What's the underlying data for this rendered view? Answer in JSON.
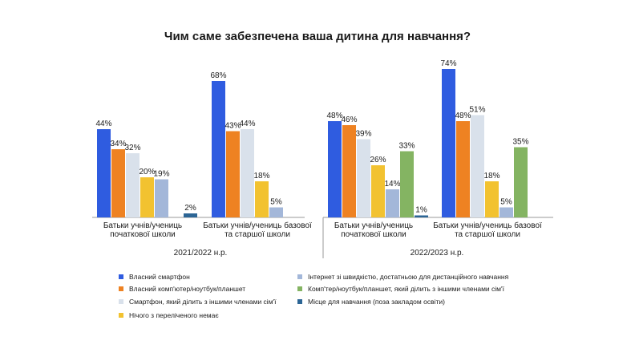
{
  "chart_data": {
    "type": "bar",
    "title": "Чим саме забезпечена ваша дитина для навчання?",
    "series": [
      {
        "name": "Власний смартфон",
        "color": "#2f5ce0"
      },
      {
        "name": "Власний комп'ютер/ноутбук/планшет",
        "color": "#ee8222"
      },
      {
        "name": "Смартфон, який ділить з іншими членами сім'ї",
        "color": "#d9e1eb"
      },
      {
        "name": "Нічого з переліченого немає",
        "color": "#f2c230"
      },
      {
        "name": "Інтернет зі швидкістю, достатньою для дистанційного навчання",
        "color": "#a3b7d9"
      },
      {
        "name": "Комп'тер/ноутбук/планшет, який ділить з іншими членами сім'ї",
        "color": "#84b462"
      },
      {
        "name": "Місце для навчання (поза закладом освіти)",
        "color": "#2c6595"
      }
    ],
    "periods": [
      {
        "label": "2021/2022 н.р.",
        "groups": [
          {
            "label": [
              "Батьки учнів/учениць",
              "початкової школи"
            ],
            "values": [
              44,
              34,
              32,
              20,
              19,
              null,
              2
            ],
            "labels": [
              "44%",
              "34%",
              "32%",
              "20%",
              "19%",
              "",
              "2%"
            ]
          },
          {
            "label": [
              "Батьки учнів/учениць базової",
              "та старшої школи"
            ],
            "values": [
              68,
              43,
              44,
              18,
              5,
              null,
              null
            ],
            "labels": [
              "68%",
              "43%",
              "44%",
              "18%",
              "5%",
              "",
              ""
            ]
          }
        ]
      },
      {
        "label": "2022/2023 н.р.",
        "groups": [
          {
            "label": [
              "Батьки учнів/учениць",
              "початкової школи"
            ],
            "values": [
              48,
              46,
              39,
              26,
              14,
              33,
              1
            ],
            "labels": [
              "48%",
              "46%",
              "39%",
              "26%",
              "14%",
              "33%",
              "1%"
            ]
          },
          {
            "label": [
              "Батьки учнів/учениць базової",
              "та старшої школи"
            ],
            "values": [
              74,
              48,
              51,
              18,
              5,
              35,
              null
            ],
            "labels": [
              "74%",
              "48%",
              "51%",
              "18%",
              "5%",
              "35%",
              ""
            ]
          }
        ]
      }
    ]
  }
}
